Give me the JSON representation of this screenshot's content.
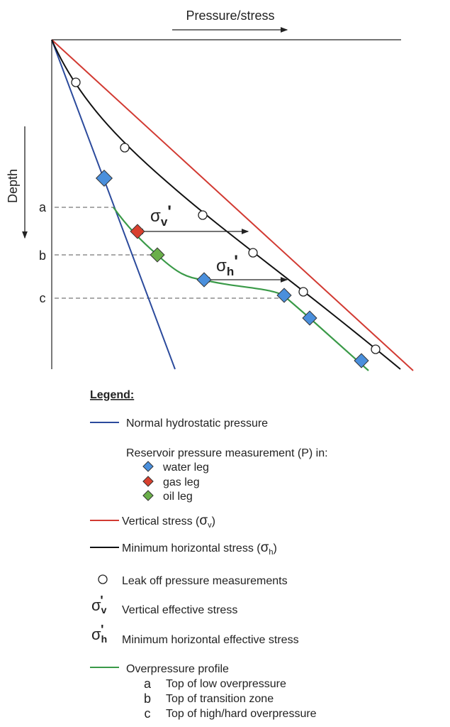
{
  "axes": {
    "x_label": "Pressure/stress",
    "y_label": "Depth"
  },
  "depth_markers": [
    "a",
    "b",
    "c"
  ],
  "annotations": {
    "sigma_v_prime": {
      "symbol": "σ",
      "sub": "v",
      "prime": "'"
    },
    "sigma_h_prime": {
      "symbol": "σ",
      "sub": "h",
      "prime": "'"
    }
  },
  "colors": {
    "hydrostatic": "#2b4a9c",
    "vertical_stress": "#d23a32",
    "min_horizontal": "#111111",
    "overpressure": "#3a9a48",
    "water_leg": "#4a8fdc",
    "gas_leg": "#d8402e",
    "oil_leg": "#6aaf4a"
  },
  "legend": {
    "title": "Legend:",
    "hydrostatic": "Normal hydrostatic pressure",
    "reservoir_heading": "Reservoir pressure measurement (P) in:",
    "water_leg": "water leg",
    "gas_leg": "gas leg",
    "oil_leg": "oil leg",
    "vertical_stress": "Vertical stress (",
    "vertical_stress_sub": "v",
    "min_horizontal": "Minimum horizontal stress (",
    "min_horizontal_sub": "h",
    "close_paren": ")",
    "sigma": "σ",
    "leak_off": "Leak off pressure measurements",
    "vertical_effective": "Vertical effective stress",
    "horizontal_effective": "Minimum horizontal effective stress",
    "overpressure": "Overpressure profile",
    "markers": [
      {
        "key": "a",
        "label": "Top of low overpressure"
      },
      {
        "key": "b",
        "label": "Top of transition zone"
      },
      {
        "key": "c",
        "label": "Top of high/hard overpressure"
      }
    ]
  }
}
